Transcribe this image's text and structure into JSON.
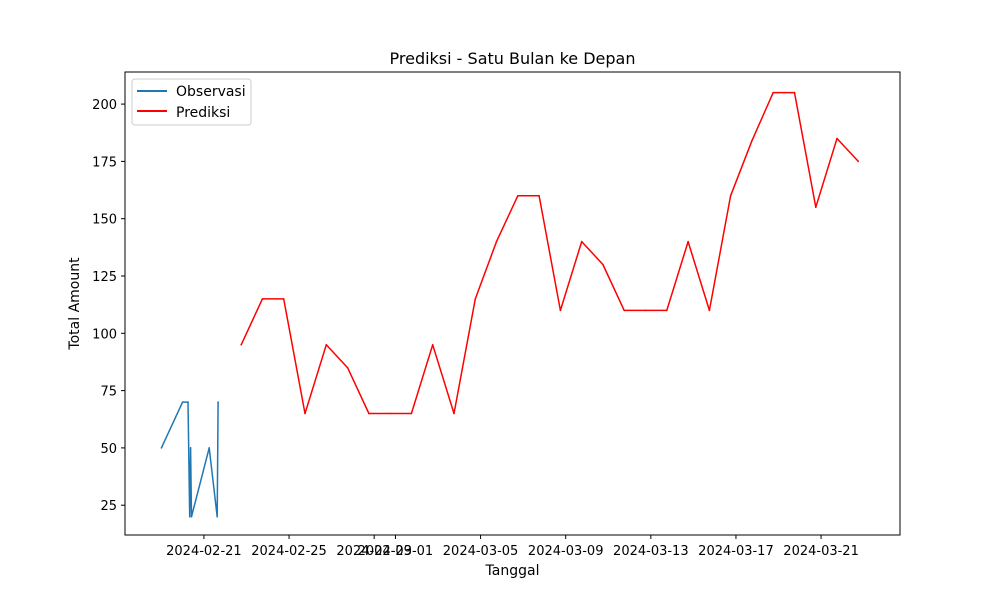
{
  "chart_data": {
    "type": "line",
    "title": "Prediksi - Satu Bulan ke Depan",
    "xlabel": "Tanggal",
    "ylabel": "Total Amount",
    "x_axis_type": "date",
    "xlim": [
      "2024-02-17T07:00",
      "2024-03-24T17:00"
    ],
    "ylim": [
      12,
      214
    ],
    "y_ticks": [
      25,
      50,
      75,
      100,
      125,
      150,
      175,
      200
    ],
    "x_ticks": [
      "2024-02-21",
      "2024-02-25",
      "2024-02-29",
      "2024-03-01",
      "2024-03-05",
      "2024-03-09",
      "2024-03-13",
      "2024-03-17",
      "2024-03-21"
    ],
    "legend_position": "upper-left",
    "grid": false,
    "series": [
      {
        "name": "Observasi",
        "color": "#1f77b4",
        "points": [
          {
            "x": "2024-02-19T00:00",
            "y": 50
          },
          {
            "x": "2024-02-20T00:00",
            "y": 70
          },
          {
            "x": "2024-02-20T06:00",
            "y": 70
          },
          {
            "x": "2024-02-20T08:00",
            "y": 20
          },
          {
            "x": "2024-02-20T09:00",
            "y": 50
          },
          {
            "x": "2024-02-20T10:00",
            "y": 20
          },
          {
            "x": "2024-02-21T06:00",
            "y": 50
          },
          {
            "x": "2024-02-21T15:00",
            "y": 20
          },
          {
            "x": "2024-02-21T16:00",
            "y": 70
          }
        ]
      },
      {
        "name": "Prediksi",
        "color": "#ff0000",
        "points": [
          {
            "x": "2024-02-22T18:00",
            "y": 95
          },
          {
            "x": "2024-02-23T18:00",
            "y": 115
          },
          {
            "x": "2024-02-24T18:00",
            "y": 115
          },
          {
            "x": "2024-02-25T18:00",
            "y": 65
          },
          {
            "x": "2024-02-26T18:00",
            "y": 95
          },
          {
            "x": "2024-02-27T18:00",
            "y": 85
          },
          {
            "x": "2024-02-28T18:00",
            "y": 65
          },
          {
            "x": "2024-02-29T18:00",
            "y": 65
          },
          {
            "x": "2024-03-01T18:00",
            "y": 65
          },
          {
            "x": "2024-03-02T18:00",
            "y": 95
          },
          {
            "x": "2024-03-03T18:00",
            "y": 65
          },
          {
            "x": "2024-03-04T18:00",
            "y": 115
          },
          {
            "x": "2024-03-05T18:00",
            "y": 140
          },
          {
            "x": "2024-03-06T18:00",
            "y": 160
          },
          {
            "x": "2024-03-07T18:00",
            "y": 160
          },
          {
            "x": "2024-03-08T18:00",
            "y": 110
          },
          {
            "x": "2024-03-09T18:00",
            "y": 140
          },
          {
            "x": "2024-03-10T18:00",
            "y": 130
          },
          {
            "x": "2024-03-11T18:00",
            "y": 110
          },
          {
            "x": "2024-03-12T18:00",
            "y": 110
          },
          {
            "x": "2024-03-13T18:00",
            "y": 110
          },
          {
            "x": "2024-03-14T18:00",
            "y": 140
          },
          {
            "x": "2024-03-15T18:00",
            "y": 110
          },
          {
            "x": "2024-03-16T18:00",
            "y": 160
          },
          {
            "x": "2024-03-17T18:00",
            "y": 184
          },
          {
            "x": "2024-03-18T18:00",
            "y": 205
          },
          {
            "x": "2024-03-19T18:00",
            "y": 205
          },
          {
            "x": "2024-03-20T18:00",
            "y": 155
          },
          {
            "x": "2024-03-21T18:00",
            "y": 185
          },
          {
            "x": "2024-03-22T18:00",
            "y": 175
          }
        ]
      }
    ]
  }
}
